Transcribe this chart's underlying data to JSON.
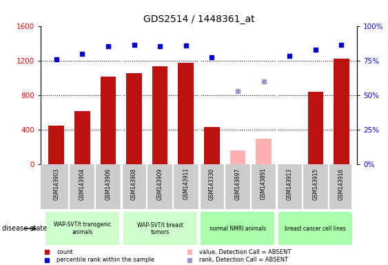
{
  "title": "GDS2514 / 1448361_at",
  "samples": [
    "GSM143903",
    "GSM143904",
    "GSM143906",
    "GSM143908",
    "GSM143909",
    "GSM143911",
    "GSM143330",
    "GSM143697",
    "GSM143891",
    "GSM143913",
    "GSM143915",
    "GSM143916"
  ],
  "bar_values": [
    450,
    620,
    1020,
    1060,
    1140,
    1175,
    430,
    null,
    null,
    null,
    840,
    1230
  ],
  "bar_absent_values": [
    null,
    null,
    null,
    null,
    null,
    null,
    null,
    160,
    300,
    null,
    null,
    null
  ],
  "bar_color_present": "#bb1111",
  "bar_color_absent": "#ffb0b0",
  "rank_dots_present": [
    1220,
    1280,
    1370,
    1390,
    1370,
    1380,
    1240,
    null,
    null,
    1260,
    1330,
    1390
  ],
  "rank_dots_absent": [
    null,
    null,
    null,
    null,
    null,
    null,
    null,
    850,
    960,
    null,
    null,
    null
  ],
  "rank_color_present": "#0000cc",
  "rank_color_absent": "#9999cc",
  "ylim_left": [
    0,
    1600
  ],
  "ylim_right": [
    0,
    100
  ],
  "yticks_left": [
    0,
    400,
    800,
    1200,
    1600
  ],
  "yticks_right": [
    0,
    25,
    50,
    75,
    100
  ],
  "ytick_right_labels": [
    "0%",
    "25%",
    "50%",
    "75%",
    "100%"
  ],
  "grid_lines": [
    400,
    800,
    1200
  ],
  "groups": [
    {
      "label": "WAP-SVT/t transgenic\nanimals",
      "start": 0,
      "end": 3,
      "color": "#ccffcc"
    },
    {
      "label": "WAP-SVT/t breast\ntumors",
      "start": 3,
      "end": 6,
      "color": "#ccffcc"
    },
    {
      "label": "normal NMRI animals",
      "start": 6,
      "end": 9,
      "color": "#aaffaa"
    },
    {
      "label": "breast cancer cell lines",
      "start": 9,
      "end": 12,
      "color": "#aaffaa"
    }
  ],
  "legend_labels": [
    "count",
    "percentile rank within the sample",
    "value, Detection Call = ABSENT",
    "rank, Detection Call = ABSENT"
  ],
  "legend_colors": [
    "#bb1111",
    "#0000cc",
    "#ffb0b0",
    "#9999cc"
  ],
  "disease_state_label": "disease state"
}
